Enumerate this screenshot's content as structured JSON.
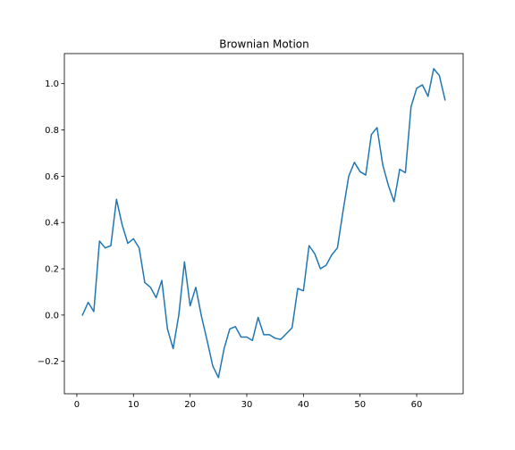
{
  "chart_data": {
    "type": "line",
    "title": "Brownian Motion",
    "xlabel": "",
    "ylabel": "",
    "xlim": [
      -2.2,
      68.2
    ],
    "ylim": [
      -0.34,
      1.13
    ],
    "xticks": [
      0,
      10,
      20,
      30,
      40,
      50,
      60
    ],
    "yticks": [
      -0.2,
      0.0,
      0.2,
      0.4,
      0.6,
      0.8,
      1.0
    ],
    "ytick_labels": [
      "−0.2",
      "0.0",
      "0.2",
      "0.4",
      "0.6",
      "0.8",
      "1.0"
    ],
    "grid": false,
    "legend": false,
    "line_color": "#1f77b4",
    "series": [
      {
        "x": [
          1,
          2,
          3,
          4,
          5,
          6,
          7,
          8,
          9,
          10,
          11,
          12,
          13,
          14,
          15,
          16,
          17,
          18,
          19,
          20,
          21,
          22,
          23,
          24,
          25,
          26,
          27,
          28,
          29,
          30,
          31,
          32,
          33,
          34,
          35,
          36,
          37,
          38,
          39,
          40,
          41,
          42,
          43,
          44,
          45,
          46,
          47,
          48,
          49,
          50,
          51,
          52,
          53,
          54,
          55,
          56,
          57,
          58,
          59,
          60,
          61,
          62,
          63,
          64,
          65
        ],
        "values": [
          0.0,
          0.055,
          0.015,
          0.32,
          0.29,
          0.3,
          0.5,
          0.39,
          0.31,
          0.33,
          0.29,
          0.14,
          0.12,
          0.075,
          0.15,
          -0.06,
          -0.145,
          0.0,
          0.23,
          0.04,
          0.12,
          -0.005,
          -0.11,
          -0.22,
          -0.27,
          -0.145,
          -0.06,
          -0.05,
          -0.095,
          -0.095,
          -0.11,
          -0.01,
          -0.085,
          -0.085,
          -0.1,
          -0.105,
          -0.08,
          -0.055,
          0.115,
          0.105,
          0.3,
          0.265,
          0.2,
          0.215,
          0.26,
          0.29,
          0.45,
          0.6,
          0.66,
          0.62,
          0.605,
          0.78,
          0.81,
          0.65,
          0.56,
          0.49,
          0.63,
          0.615,
          0.9,
          0.98,
          0.995,
          0.945,
          1.065,
          1.035,
          0.93
        ]
      }
    ]
  }
}
